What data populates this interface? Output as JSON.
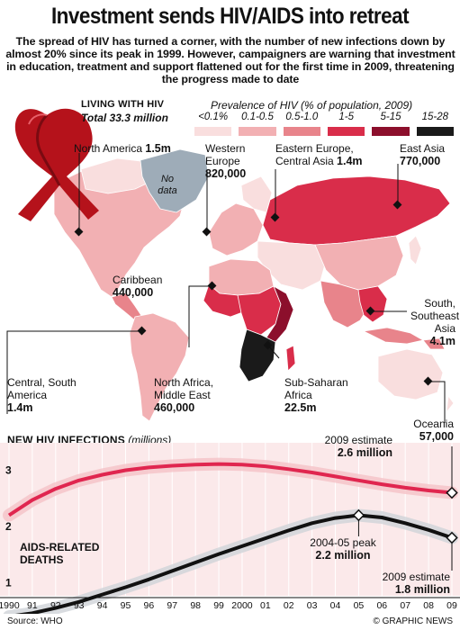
{
  "title": "Investment sends HIV/AIDS into retreat",
  "intro": "The spread of HIV has turned a corner, with the number of new infections down by almost 20% since its peak in 1999. However, campaigners are warning that investment in education, treatment and support flattened out for the first time in 2009, threatening the progress made to date",
  "living": {
    "heading": "LIVING WITH HIV",
    "total": "Total 33.3 million"
  },
  "legend": {
    "title": "Prevalence of HIV (% of population, 2009)",
    "items": [
      {
        "label": "<0.1%",
        "color": "#f9dede"
      },
      {
        "label": "0.1-0.5",
        "color": "#f2b0b3"
      },
      {
        "label": "0.5-1.0",
        "color": "#e8848b"
      },
      {
        "label": "1-5",
        "color": "#d92d4a"
      },
      {
        "label": "5-15",
        "color": "#8c0f2c"
      },
      {
        "label": "15-28",
        "color": "#1a1a1a"
      }
    ],
    "nodata_color": "#9eacb8"
  },
  "regions": {
    "north_america": {
      "name": "North America",
      "value": "1.5m"
    },
    "western_europe": {
      "name1": "Western",
      "name2": "Europe",
      "value": "820,000"
    },
    "eastern_europe": {
      "name1": "Eastern Europe,",
      "name2": "Central Asia",
      "value": "1.4m"
    },
    "east_asia": {
      "name": "East Asia",
      "value": "770,000"
    },
    "caribbean": {
      "name": "Caribbean",
      "value": "440,000"
    },
    "south_asia": {
      "name1": "South,",
      "name2": "Southeast",
      "name3": "Asia",
      "value": "4.1m"
    },
    "central_south_america": {
      "name1": "Central, South",
      "name2": "America",
      "value": "1.4m"
    },
    "north_africa": {
      "name1": "North Africa,",
      "name2": "Middle East",
      "value": "460,000"
    },
    "sub_saharan": {
      "name1": "Sub-Saharan",
      "name2": "Africa",
      "value": "22.5m"
    },
    "oceania": {
      "name": "Oceania",
      "value": "57,000"
    }
  },
  "no_data": {
    "line1": "No",
    "line2": "data"
  },
  "chart_data": {
    "type": "line",
    "title": "NEW HIV INFECTIONS",
    "unit": "(millions)",
    "x": [
      "1990",
      "91",
      "92",
      "93",
      "94",
      "95",
      "96",
      "97",
      "98",
      "99",
      "2000",
      "01",
      "02",
      "03",
      "04",
      "05",
      "06",
      "07",
      "08",
      "09"
    ],
    "ylim": [
      0.8,
      3.2
    ],
    "yticks": [
      "1",
      "2",
      "3"
    ],
    "series": [
      {
        "name": "New HIV infections",
        "color": "#e0264f",
        "values": [
          2.2,
          2.47,
          2.67,
          2.82,
          2.92,
          3.0,
          3.05,
          3.08,
          3.1,
          3.11,
          3.1,
          3.07,
          3.02,
          2.96,
          2.89,
          2.82,
          2.75,
          2.69,
          2.64,
          2.6
        ]
      },
      {
        "name": "AIDS-RELATED DEATHS",
        "color": "#111111",
        "values": [
          0.4,
          0.46,
          0.55,
          0.66,
          0.79,
          0.92,
          1.06,
          1.21,
          1.36,
          1.51,
          1.65,
          1.79,
          1.93,
          2.06,
          2.15,
          2.2,
          2.16,
          2.06,
          1.94,
          1.8
        ]
      }
    ],
    "annotations": {
      "est_infections_1": "2009 estimate",
      "est_infections_2": "2.6 million",
      "peak_1": "2004-05 peak",
      "peak_2": "2.2 million",
      "est_deaths_1": "2009 estimate",
      "est_deaths_2": "1.8 million"
    }
  },
  "deaths_label": {
    "line1": "AIDS-RELATED",
    "line2": "DEATHS",
    "tick": "1"
  },
  "footer": {
    "source": "Source: WHO",
    "credit": "© GRAPHIC NEWS"
  }
}
